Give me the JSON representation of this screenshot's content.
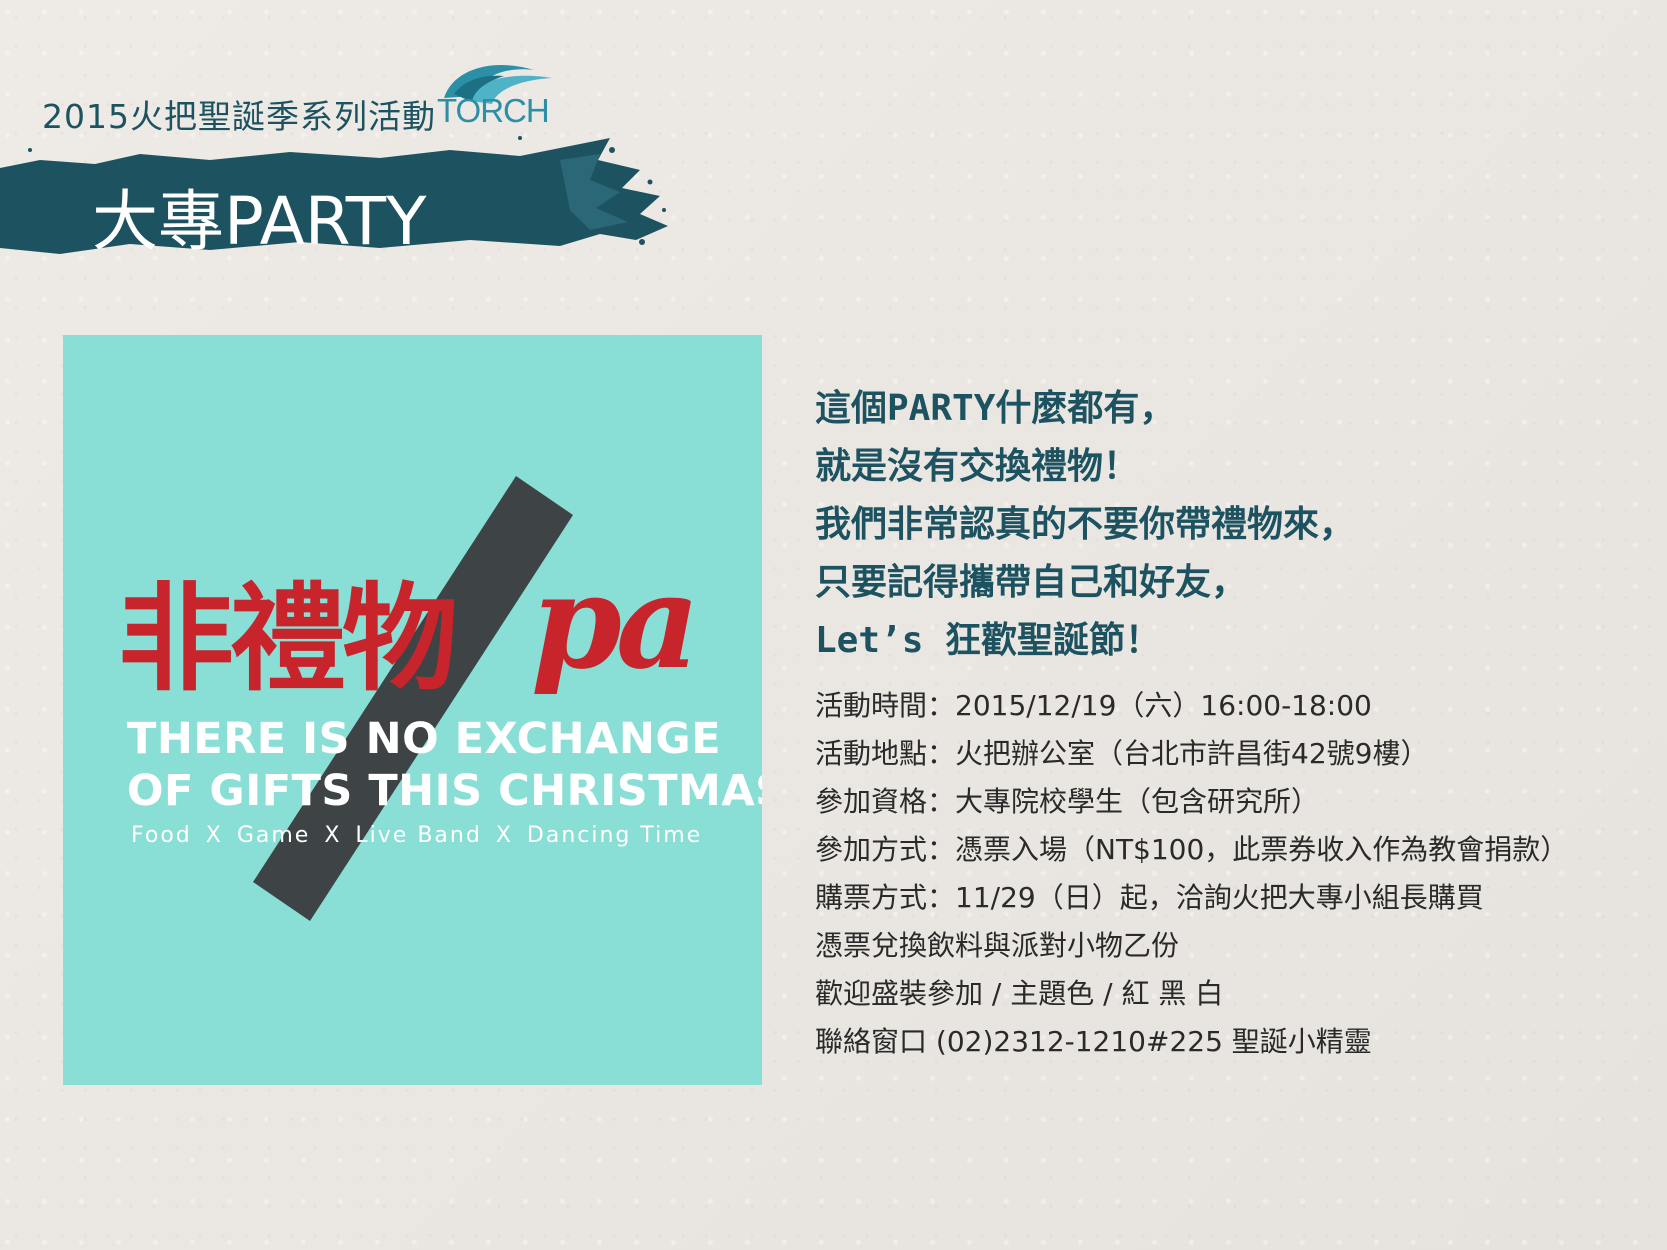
{
  "header": {
    "series_title": "2015火把聖誕季系列活動",
    "logo_text": "TORCH",
    "event_title": "大專PARTY"
  },
  "poster": {
    "title_cn": "非禮物",
    "title_pa": "pa",
    "subtitle_line1": "THERE IS NO EXCHANGE",
    "subtitle_line2": "OF GIFTS THIS CHRISTMAS.",
    "tags": [
      "Food",
      "Game",
      "Live Band",
      "Dancing Time"
    ],
    "separator": "X",
    "background_color": "#89dfd6",
    "accent_color": "#c8242b"
  },
  "headline": {
    "lines": [
      "這個PARTY什麼都有，",
      "就是沒有交換禮物！",
      "我們非常認真的不要你帶禮物來，",
      "只要記得攜帶自己和好友，",
      "Let’s 狂歡聖誕節！"
    ]
  },
  "details": {
    "lines": [
      "活動時間：2015/12/19（六）16:00-18:00",
      "活動地點：火把辦公室（台北市許昌街42號9樓）",
      "參加資格：大專院校學生（包含研究所）",
      "參加方式：憑票入場（NT$100，此票券收入作為教會捐款）",
      "購票方式：11/29（日）起，洽詢火把大專小組長購買",
      "憑票兌換飲料與派對小物乙份",
      "歡迎盛裝參加 / 主題色 / 紅 黑 白",
      "聯絡窗口 (02)2312-1210#225 聖誕小精靈"
    ]
  },
  "colors": {
    "brand_teal": "#1d5360",
    "logo_blue": "#2b8fa6"
  }
}
